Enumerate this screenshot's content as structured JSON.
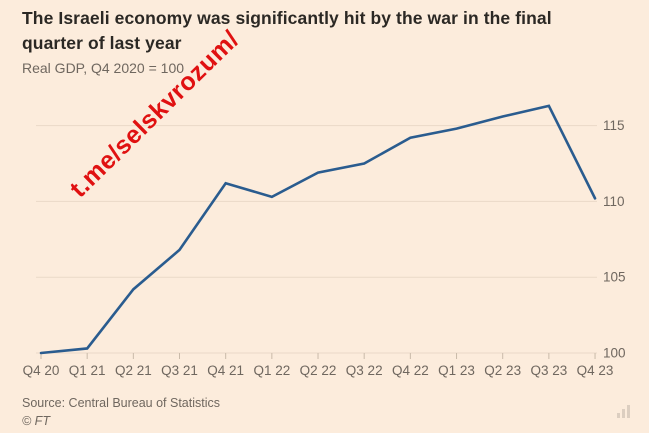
{
  "page": {
    "title": "The Israeli economy was significantly hit by the war in the final quarter of last year",
    "subtitle": "Real GDP, Q4 2020 = 100",
    "watermark": "t.me/selskvrozum/",
    "source": "Source: Central Bureau of Statistics",
    "credit": "© FT"
  },
  "colors": {
    "background": "#fcecdc",
    "title_text": "#2b2824",
    "muted_text": "#6f675f",
    "gridline": "#ead9c8",
    "axis_tick": "#c9baa9",
    "line": "#2a5c8f",
    "watermark": "#e01111"
  },
  "chart_data": {
    "type": "line",
    "title": "The Israeli economy was significantly hit by the war in the final quarter of last year",
    "subtitle": "Real GDP, Q4 2020 = 100",
    "categories": [
      "Q4 20",
      "Q1 21",
      "Q2 21",
      "Q3 21",
      "Q4 21",
      "Q1 22",
      "Q2 22",
      "Q3 22",
      "Q4 22",
      "Q1 23",
      "Q2 23",
      "Q3 23",
      "Q4 23"
    ],
    "series": [
      {
        "name": "Real GDP, Q4 2020 = 100",
        "values": [
          100.0,
          100.3,
          104.2,
          106.8,
          111.2,
          110.3,
          111.9,
          112.5,
          114.2,
          114.8,
          115.6,
          116.3,
          110.2
        ]
      }
    ],
    "xlabel": "",
    "ylabel": "",
    "yticks": [
      100,
      105,
      110,
      115
    ],
    "ylim": [
      100,
      117
    ],
    "grid": true,
    "y_axis_side": "right",
    "legend": false
  }
}
